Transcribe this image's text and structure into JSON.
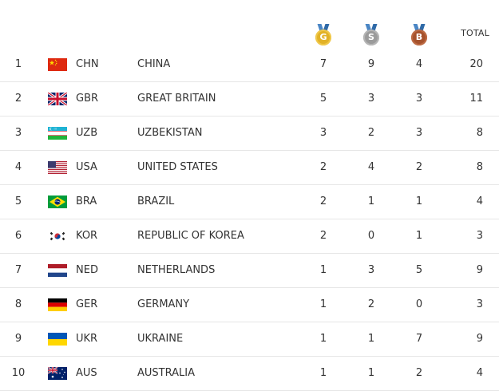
{
  "header": {
    "gold_letter": "G",
    "silver_letter": "S",
    "bronze_letter": "B",
    "total_label": "TOTAL"
  },
  "rows": [
    {
      "rank": "1",
      "code": "CHN",
      "country": "CHINA",
      "gold": "7",
      "silver": "9",
      "bronze": "4",
      "total": "20",
      "flag": "china-flag-icon"
    },
    {
      "rank": "2",
      "code": "GBR",
      "country": "GREAT BRITAIN",
      "gold": "5",
      "silver": "3",
      "bronze": "3",
      "total": "11",
      "flag": "great-britain-flag-icon"
    },
    {
      "rank": "3",
      "code": "UZB",
      "country": "UZBEKISTAN",
      "gold": "3",
      "silver": "2",
      "bronze": "3",
      "total": "8",
      "flag": "uzbekistan-flag-icon"
    },
    {
      "rank": "4",
      "code": "USA",
      "country": "UNITED STATES",
      "gold": "2",
      "silver": "4",
      "bronze": "2",
      "total": "8",
      "flag": "united-states-flag-icon"
    },
    {
      "rank": "5",
      "code": "BRA",
      "country": "BRAZIL",
      "gold": "2",
      "silver": "1",
      "bronze": "1",
      "total": "4",
      "flag": "brazil-flag-icon"
    },
    {
      "rank": "6",
      "code": "KOR",
      "country": "REPUBLIC OF KOREA",
      "gold": "2",
      "silver": "0",
      "bronze": "1",
      "total": "3",
      "flag": "korea-flag-icon"
    },
    {
      "rank": "7",
      "code": "NED",
      "country": "NETHERLANDS",
      "gold": "1",
      "silver": "3",
      "bronze": "5",
      "total": "9",
      "flag": "netherlands-flag-icon"
    },
    {
      "rank": "8",
      "code": "GER",
      "country": "GERMANY",
      "gold": "1",
      "silver": "2",
      "bronze": "0",
      "total": "3",
      "flag": "germany-flag-icon"
    },
    {
      "rank": "9",
      "code": "UKR",
      "country": "UKRAINE",
      "gold": "1",
      "silver": "1",
      "bronze": "7",
      "total": "9",
      "flag": "ukraine-flag-icon"
    },
    {
      "rank": "10",
      "code": "AUS",
      "country": "AUSTRALIA",
      "gold": "1",
      "silver": "1",
      "bronze": "2",
      "total": "4",
      "flag": "australia-flag-icon"
    }
  ],
  "colors": {
    "gold": "#e2b227",
    "silver": "#9b9b9b",
    "bronze": "#a6522d",
    "text": "#333333",
    "divider": "#e6e6e6"
  }
}
